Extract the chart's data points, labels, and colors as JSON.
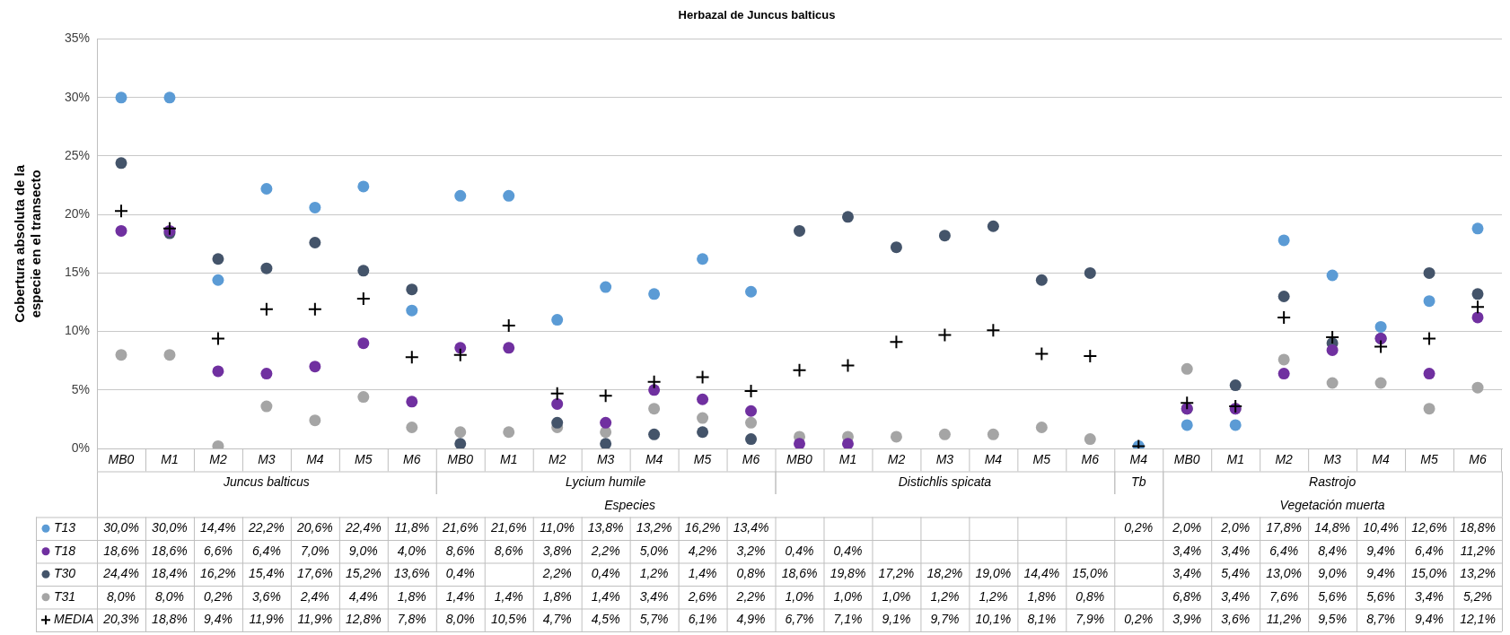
{
  "chart_data": {
    "type": "scatter",
    "title": "Herbazal de Juncus balticus",
    "ylabel": "Cobertura absoluta de la especie en el transecto",
    "categories": [
      "MB0",
      "M1",
      "M2",
      "M3",
      "M4",
      "M5",
      "M6",
      "MB0",
      "M1",
      "M2",
      "M3",
      "M4",
      "M5",
      "M6",
      "MB0",
      "M1",
      "M2",
      "M3",
      "M4",
      "M5",
      "M6",
      "M4",
      "MB0",
      "M1",
      "M2",
      "M3",
      "M4",
      "M5",
      "M6"
    ],
    "ylim": [
      0,
      35
    ],
    "yticks": [
      {
        "value": 0,
        "label": "0%"
      },
      {
        "value": 5,
        "label": "5%"
      },
      {
        "value": 10,
        "label": "10%"
      },
      {
        "value": 15,
        "label": "15%"
      },
      {
        "value": 20,
        "label": "20%"
      },
      {
        "value": 25,
        "label": "25%"
      },
      {
        "value": 30,
        "label": "30%"
      },
      {
        "value": 35,
        "label": "35%"
      }
    ],
    "grid": "y",
    "legend": "bottom",
    "annotations": [
      "Juncus balticus",
      "Lycium humile",
      "Especies",
      "Distichlis spicata",
      "Tb",
      "Rastrojo",
      "Vegetación muerta"
    ],
    "series": [
      {
        "name": "T13",
        "color": "#5b9bd5",
        "marker": "circle",
        "values": [
          30.0,
          30.0,
          14.4,
          22.2,
          20.6,
          22.4,
          11.8,
          21.6,
          21.6,
          11.0,
          13.8,
          13.2,
          16.2,
          13.4,
          null,
          null,
          null,
          null,
          null,
          null,
          null,
          0.2,
          2.0,
          2.0,
          17.8,
          14.8,
          10.4,
          12.6,
          18.8
        ],
        "value_labels": [
          "30,0%",
          "30,0%",
          "14,4%",
          "22,2%",
          "20,6%",
          "22,4%",
          "11,8%",
          "21,6%",
          "21,6%",
          "11,0%",
          "13,8%",
          "13,2%",
          "16,2%",
          "13,4%",
          null,
          null,
          null,
          null,
          null,
          null,
          null,
          "0,2%",
          "2,0%",
          "2,0%",
          "17,8%",
          "14,8%",
          "10,4%",
          "12,6%",
          "18,8%"
        ]
      },
      {
        "name": "T18",
        "color": "#7030a0",
        "marker": "circle",
        "values": [
          18.6,
          18.6,
          6.6,
          6.4,
          7.0,
          9.0,
          4.0,
          8.6,
          8.6,
          3.8,
          2.2,
          5.0,
          4.2,
          3.2,
          0.4,
          0.4,
          null,
          null,
          null,
          null,
          null,
          null,
          3.4,
          3.4,
          6.4,
          8.4,
          9.4,
          6.4,
          11.2
        ],
        "value_labels": [
          "18,6%",
          "18,6%",
          "6,6%",
          "6,4%",
          "7,0%",
          "9,0%",
          "4,0%",
          "8,6%",
          "8,6%",
          "3,8%",
          "2,2%",
          "5,0%",
          "4,2%",
          "3,2%",
          "0,4%",
          "0,4%",
          null,
          null,
          null,
          null,
          null,
          null,
          "3,4%",
          "3,4%",
          "6,4%",
          "8,4%",
          "9,4%",
          "6,4%",
          "11,2%"
        ]
      },
      {
        "name": "T30",
        "color": "#44546a",
        "marker": "circle",
        "values": [
          24.4,
          18.4,
          16.2,
          15.4,
          17.6,
          15.2,
          13.6,
          0.4,
          null,
          2.2,
          0.4,
          1.2,
          1.4,
          0.8,
          18.6,
          19.8,
          17.2,
          18.2,
          19.0,
          14.4,
          15.0,
          null,
          3.4,
          5.4,
          13.0,
          9.0,
          9.4,
          15.0,
          13.2
        ],
        "value_labels": [
          "24,4%",
          "18,4%",
          "16,2%",
          "15,4%",
          "17,6%",
          "15,2%",
          "13,6%",
          "0,4%",
          null,
          "2,2%",
          "0,4%",
          "1,2%",
          "1,4%",
          "0,8%",
          "18,6%",
          "19,8%",
          "17,2%",
          "18,2%",
          "19,0%",
          "14,4%",
          "15,0%",
          null,
          "3,4%",
          "5,4%",
          "13,0%",
          "9,0%",
          "9,4%",
          "15,0%",
          "13,2%"
        ]
      },
      {
        "name": "T31",
        "color": "#a5a5a5",
        "marker": "circle",
        "values": [
          8.0,
          8.0,
          0.2,
          3.6,
          2.4,
          4.4,
          1.8,
          1.4,
          1.4,
          1.8,
          1.4,
          3.4,
          2.6,
          2.2,
          1.0,
          1.0,
          1.0,
          1.2,
          1.2,
          1.8,
          0.8,
          null,
          6.8,
          3.4,
          7.6,
          5.6,
          5.6,
          3.4,
          5.2
        ],
        "value_labels": [
          "8,0%",
          "8,0%",
          "0,2%",
          "3,6%",
          "2,4%",
          "4,4%",
          "1,8%",
          "1,4%",
          "1,4%",
          "1,8%",
          "1,4%",
          "3,4%",
          "2,6%",
          "2,2%",
          "1,0%",
          "1,0%",
          "1,0%",
          "1,2%",
          "1,2%",
          "1,8%",
          "0,8%",
          null,
          "6,8%",
          "3,4%",
          "7,6%",
          "5,6%",
          "5,6%",
          "3,4%",
          "5,2%"
        ]
      },
      {
        "name": "MEDIA",
        "color": "#000000",
        "marker": "cross",
        "values": [
          20.3,
          18.8,
          9.4,
          11.9,
          11.9,
          12.8,
          7.8,
          8.0,
          10.5,
          4.7,
          4.5,
          5.7,
          6.1,
          4.9,
          6.7,
          7.1,
          9.1,
          9.7,
          10.1,
          8.1,
          7.9,
          0.2,
          3.9,
          3.6,
          11.2,
          9.5,
          8.7,
          9.4,
          12.1
        ],
        "value_labels": [
          "20,3%",
          "18,8%",
          "9,4%",
          "11,9%",
          "11,9%",
          "12,8%",
          "7,8%",
          "8,0%",
          "10,5%",
          "4,7%",
          "4,5%",
          "5,7%",
          "6,1%",
          "4,9%",
          "6,7%",
          "7,1%",
          "9,1%",
          "9,7%",
          "10,1%",
          "8,1%",
          "7,9%",
          "0,2%",
          "3,9%",
          "3,6%",
          "11,2%",
          "9,5%",
          "8,7%",
          "9,4%",
          "12,1%"
        ]
      }
    ]
  }
}
